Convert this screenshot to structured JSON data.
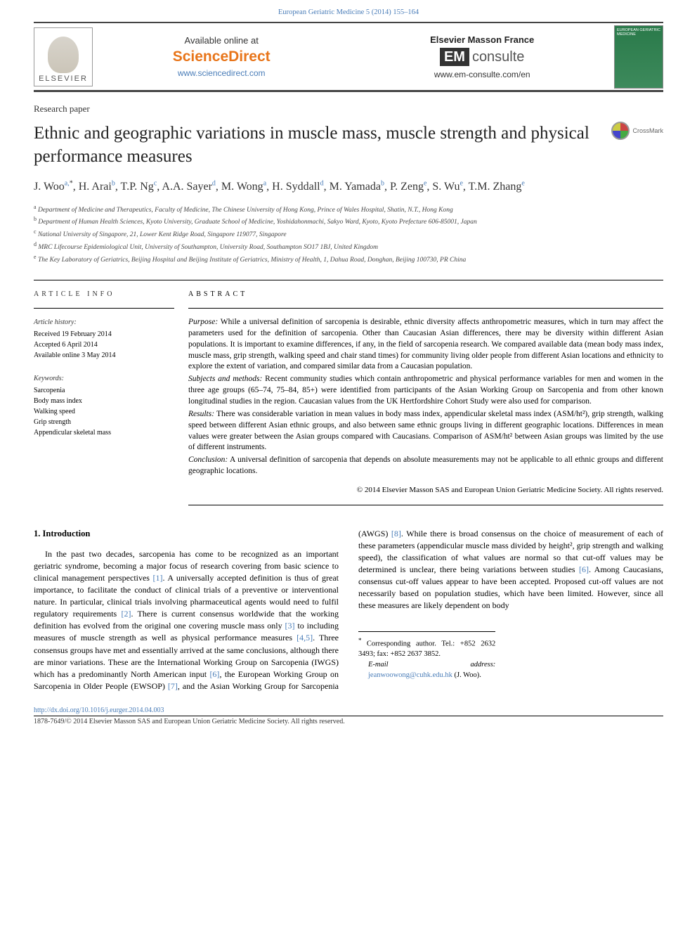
{
  "header_citation": "European Geriatric Medicine 5 (2014) 155–164",
  "banner": {
    "elsevier": "ELSEVIER",
    "available": "Available online at",
    "sciencedirect": "ScienceDirect",
    "sd_url": "www.sciencedirect.com",
    "em_france": "Elsevier Masson France",
    "em_box": "EM",
    "em_consulte": "consulte",
    "em_url": "www.em-consulte.com/en",
    "journal_cover": "EUROPEAN GERIATRIC MEDICINE"
  },
  "paper_type": "Research paper",
  "title": "Ethnic and geographic variations in muscle mass, muscle strength and physical performance measures",
  "crossmark": "CrossMark",
  "authors": [
    {
      "name": "J. Woo",
      "aff": "a,",
      "star": true
    },
    {
      "name": "H. Arai",
      "aff": "b"
    },
    {
      "name": "T.P. Ng",
      "aff": "c"
    },
    {
      "name": "A.A. Sayer",
      "aff": "d"
    },
    {
      "name": "M. Wong",
      "aff": "a"
    },
    {
      "name": "H. Syddall",
      "aff": "d"
    },
    {
      "name": "M. Yamada",
      "aff": "b"
    },
    {
      "name": "P. Zeng",
      "aff": "e"
    },
    {
      "name": "S. Wu",
      "aff": "e"
    },
    {
      "name": "T.M. Zhang",
      "aff": "e"
    }
  ],
  "affiliations": [
    {
      "sup": "a",
      "text": "Department of Medicine and Therapeutics, Faculty of Medicine, The Chinese University of Hong Kong, Prince of Wales Hospital, Shatin, N.T., Hong Kong"
    },
    {
      "sup": "b",
      "text": "Department of Human Health Sciences, Kyoto University, Graduate School of Medicine, Yoshidahonmachi, Sakyo Ward, Kyoto, Kyoto Prefecture 606-85001, Japan"
    },
    {
      "sup": "c",
      "text": "National University of Singapore, 21, Lower Kent Ridge Road, Singapore 119077, Singapore"
    },
    {
      "sup": "d",
      "text": "MRC Lifecourse Epidemiological Unit, University of Southampton, University Road, Southampton SO17 1BJ, United Kingdom"
    },
    {
      "sup": "e",
      "text": "The Key Laboratory of Geriatrics, Beijing Hospital and Beijing Institute of Geriatrics, Ministry of Health, 1, Dahua Road, Donghan, Beijing 100730, PR China"
    }
  ],
  "article_info": {
    "heading": "ARTICLE INFO",
    "history_label": "Article history:",
    "history": [
      "Received 19 February 2014",
      "Accepted 6 April 2014",
      "Available online 3 May 2014"
    ],
    "keywords_label": "Keywords:",
    "keywords": [
      "Sarcopenia",
      "Body mass index",
      "Walking speed",
      "Grip strength",
      "Appendicular skeletal mass"
    ]
  },
  "abstract": {
    "heading": "ABSTRACT",
    "purpose_label": "Purpose:",
    "purpose": " While a universal definition of sarcopenia is desirable, ethnic diversity affects anthropometric measures, which in turn may affect the parameters used for the definition of sarcopenia. Other than Caucasian Asian differences, there may be diversity within different Asian populations. It is important to examine differences, if any, in the field of sarcopenia research. We compared available data (mean body mass index, muscle mass, grip strength, walking speed and chair stand times) for community living older people from different Asian locations and ethnicity to explore the extent of variation, and compared similar data from a Caucasian population.",
    "methods_label": "Subjects and methods:",
    "methods": " Recent community studies which contain anthropometric and physical performance variables for men and women in the three age groups (65–74, 75–84, 85+) were identified from participants of the Asian Working Group on Sarcopenia and from other known longitudinal studies in the region. Caucasian values from the UK Hertfordshire Cohort Study were also used for comparison.",
    "results_label": "Results:",
    "results": " There was considerable variation in mean values in body mass index, appendicular skeletal mass index (ASM/ht²), grip strength, walking speed between different Asian ethnic groups, and also between same ethnic groups living in different geographic locations. Differences in mean values were greater between the Asian groups compared with Caucasians. Comparison of ASM/ht² between Asian groups was limited by the use of different instruments.",
    "conclusion_label": "Conclusion:",
    "conclusion": " A universal definition of sarcopenia that depends on absolute measurements may not be applicable to all ethnic groups and different geographic locations.",
    "copyright": "© 2014 Elsevier Masson SAS and European Union Geriatric Medicine Society. All rights reserved."
  },
  "body": {
    "section_heading": "1. Introduction",
    "col1_text": "In the past two decades, sarcopenia has come to be recognized as an important geriatric syndrome, becoming a major focus of research covering from basic science to clinical management perspectives ",
    "ref1": "[1]",
    "col1_text2": ". A universally accepted definition is thus of great importance, to facilitate the conduct of clinical trials of a preventive or interventional nature. In particular, clinical trials involving pharmaceutical agents would need to fulfil regulatory requirements ",
    "ref2": "[2]",
    "col1_text3": ". There is current consensus worldwide that the working definition has evolved from the original one covering muscle mass only ",
    "ref3": "[3]",
    "col1_text4": " to including measures of muscle strength as",
    "col2_text1": "well as physical performance measures ",
    "ref45": "[4,5]",
    "col2_text2": ". Three consensus groups have met and essentially arrived at the same conclusions, although there are minor variations. These are the International Working Group on Sarcopenia (IWGS) which has a predominantly North American input ",
    "ref6": "[6]",
    "col2_text3": ", the European Working Group on Sarcopenia in Older People (EWSOP) ",
    "ref7": "[7]",
    "col2_text4": ", and the Asian Working Group for Sarcopenia (AWGS) ",
    "ref8": "[8]",
    "col2_text5": ". While there is broad consensus on the choice of measurement of each of these parameters (appendicular muscle mass divided by height², grip strength and walking speed), the classification of what values are normal so that cut-off values may be determined is unclear, there being variations between studies ",
    "ref6b": "[6]",
    "col2_text6": ". Among Caucasians, consensus cut-off values appear to have been accepted. Proposed cut-off values are not necessarily based on population studies, which have been limited. However, since all these measures are likely dependent on body"
  },
  "corresponding": {
    "line1": "Corresponding author. Tel.: +852 2632 3493; fax: +852 2637 3852.",
    "email_label": "E-mail address:",
    "email": "jeanwoowong@cuhk.edu.hk",
    "author": " (J. Woo)."
  },
  "footer": {
    "doi": "http://dx.doi.org/10.1016/j.eurger.2014.04.003",
    "issn": "1878-7649/© 2014 Elsevier Masson SAS and European Union Geriatric Medicine Society. All rights reserved."
  }
}
